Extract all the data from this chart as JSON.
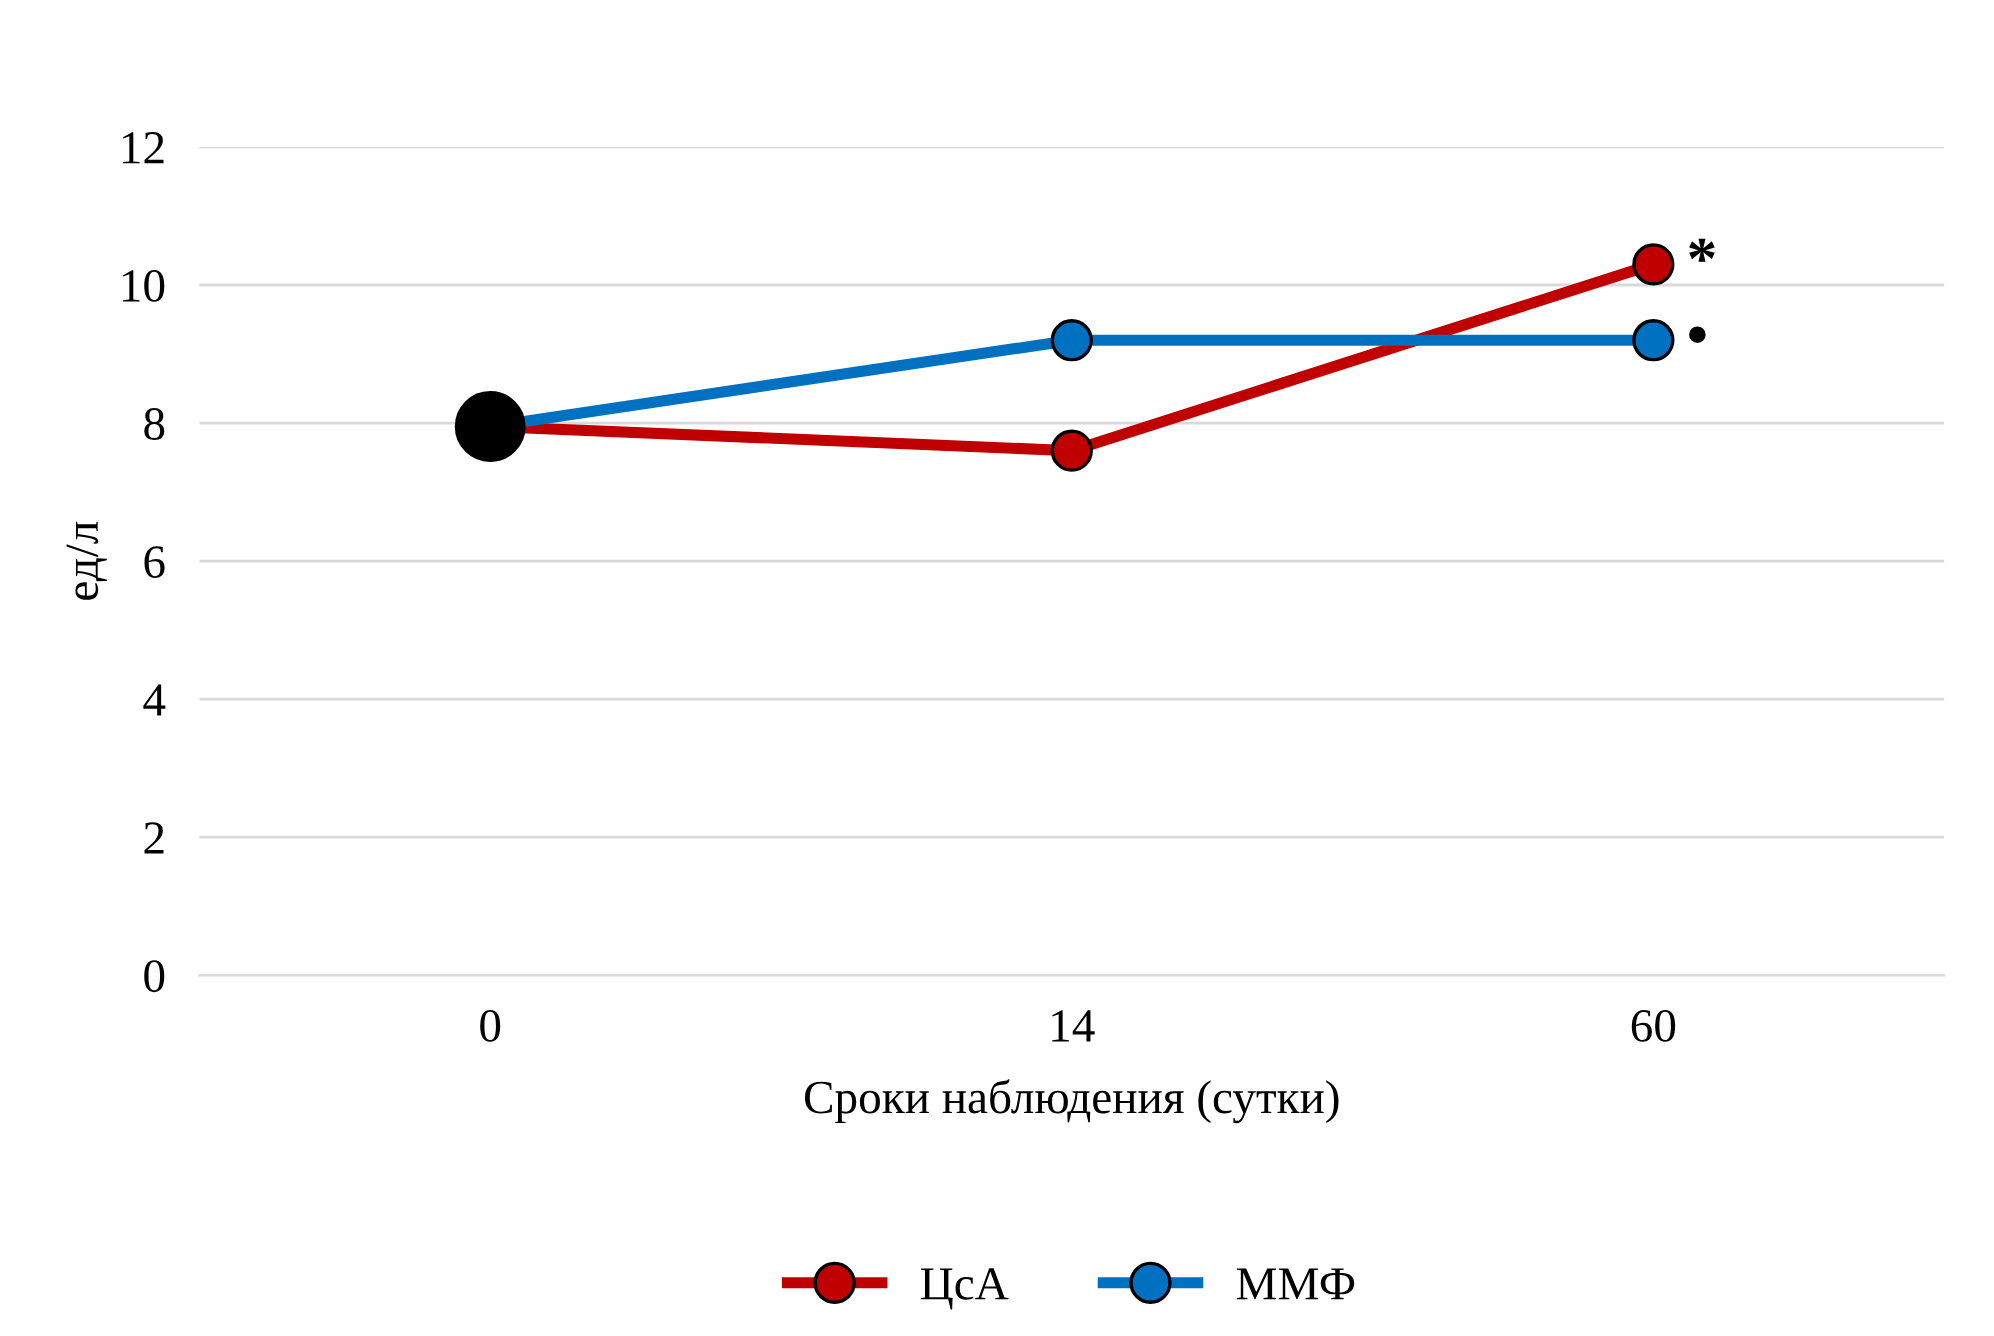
{
  "chart_data": {
    "type": "line",
    "xlabel": "Сроки наблюдения (сутки)",
    "ylabel": "ед/л",
    "categories": [
      "0",
      "14",
      "60"
    ],
    "series": [
      {
        "name": "ЦсА",
        "color": "#c00000",
        "values": [
          7.95,
          7.6,
          10.3
        ]
      },
      {
        "name": "ММФ",
        "color": "#0070c0",
        "values": [
          7.95,
          9.2,
          9.2
        ]
      },
      {
        "type": "scatter",
        "color": "#000000",
        "x": [
          "0"
        ],
        "values": [
          7.95
        ]
      }
    ],
    "annotations": [
      {
        "text": "*",
        "x": "60",
        "y": 10.3
      },
      {
        "text": "•",
        "x": "60",
        "y": 9.2
      }
    ],
    "ylim": [
      0,
      12
    ],
    "yticks": [
      0,
      2,
      4,
      6,
      8,
      10,
      12
    ],
    "grid": "y",
    "legend": "bottom",
    "marker": "circle"
  }
}
